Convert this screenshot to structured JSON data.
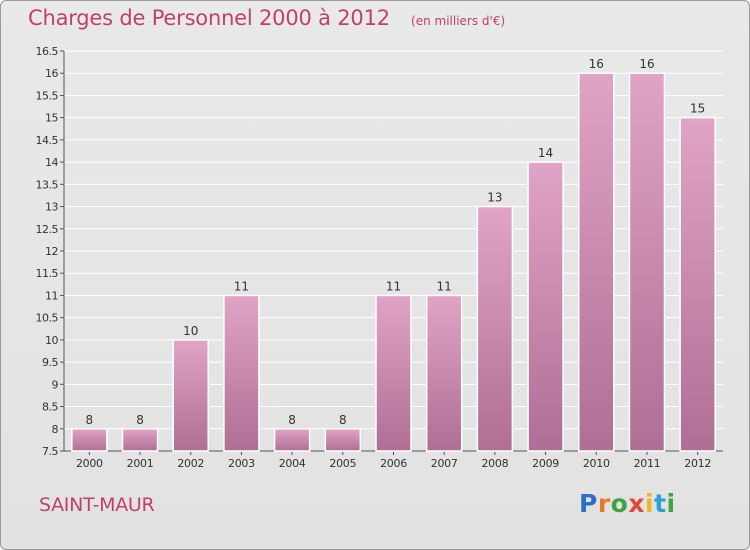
{
  "header": {
    "title": "Charges de Personnel 2000 à 2012",
    "subtitle": "(en milliers d'€)"
  },
  "footer": {
    "commune": "SAINT-MAUR",
    "logo": {
      "letters": [
        "P",
        "r",
        "o",
        "x",
        "i",
        "t",
        "i"
      ],
      "colors": [
        "#2b6fc8",
        "#e8792a",
        "#3aa640",
        "#e04a3a",
        "#f0b820",
        "#2b9fd8",
        "#3aa640"
      ]
    }
  },
  "colors": {
    "bar_top": "#e0a4c6",
    "bar_bottom": "#b06e94",
    "accent": "#c0406e",
    "grid": "#ffffff",
    "axis_text": "#333333"
  },
  "chart_data": {
    "type": "bar",
    "categories": [
      "2000",
      "2001",
      "2002",
      "2003",
      "2004",
      "2005",
      "2006",
      "2007",
      "2008",
      "2009",
      "2010",
      "2011",
      "2012"
    ],
    "values": [
      8,
      8,
      10,
      11,
      8,
      8,
      11,
      11,
      13,
      14,
      16,
      16,
      15
    ],
    "data_labels": [
      "8",
      "8",
      "10",
      "11",
      "8",
      "8",
      "11",
      "11",
      "13",
      "14",
      "16",
      "16",
      "15"
    ],
    "ylim": [
      7.5,
      16.5
    ],
    "yticks": [
      7.5,
      8,
      8.5,
      9,
      9.5,
      10,
      10.5,
      11,
      11.5,
      12,
      12.5,
      13,
      13.5,
      14,
      14.5,
      15,
      15.5,
      16,
      16.5
    ],
    "ytick_labels": [
      "7.5",
      "8",
      "8.5",
      "9",
      "9.5",
      "10",
      "10.5",
      "11",
      "11.5",
      "12",
      "12.5",
      "13",
      "13.5",
      "14",
      "14.5",
      "15",
      "15.5",
      "16",
      "16.5"
    ],
    "grid": true,
    "xlabel": "",
    "ylabel": ""
  }
}
